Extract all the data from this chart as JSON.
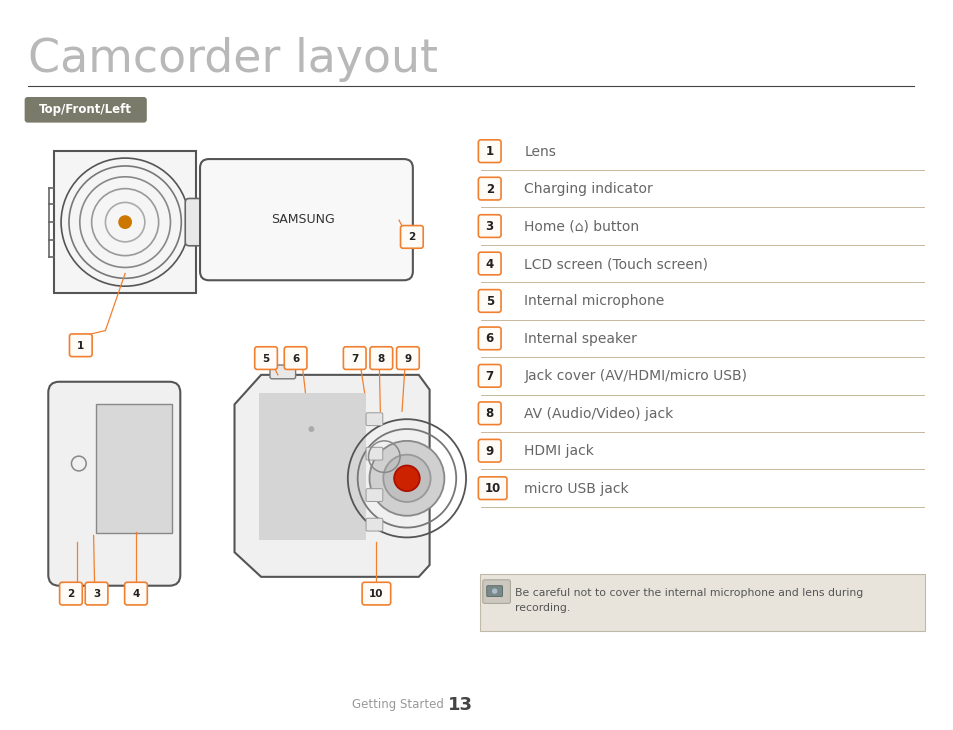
{
  "title": "Camcorder layout",
  "section_label": "Top/Front/Left",
  "bg_color": "#ffffff",
  "title_color": "#b8b8b8",
  "section_bg": "#7a7a6a",
  "section_text_color": "#ffffff",
  "orange_color": "#f08030",
  "separator_color": "#c8b89a",
  "text_color": "#666666",
  "note_bg": "#e8e4dc",
  "note_border": "#c0b8a8",
  "items": [
    {
      "num": "1",
      "label": "Lens"
    },
    {
      "num": "2",
      "label": "Charging indicator"
    },
    {
      "num": "3",
      "label": "Home (⌂) button"
    },
    {
      "num": "4",
      "label": "LCD screen (Touch screen)"
    },
    {
      "num": "5",
      "label": "Internal microphone"
    },
    {
      "num": "6",
      "label": "Internal speaker"
    },
    {
      "num": "7",
      "label": "Jack cover (AV/HDMI/micro USB)"
    },
    {
      "num": "8",
      "label": "AV (Audio/Video) jack"
    },
    {
      "num": "9",
      "label": "HDMI jack"
    },
    {
      "num": "10",
      "label": "micro USB jack"
    }
  ],
  "footer_section": "Getting Started",
  "footer_page": "13",
  "note_text1": "Be careful not to cover the internal microphone and lens during",
  "note_text2": "recording."
}
